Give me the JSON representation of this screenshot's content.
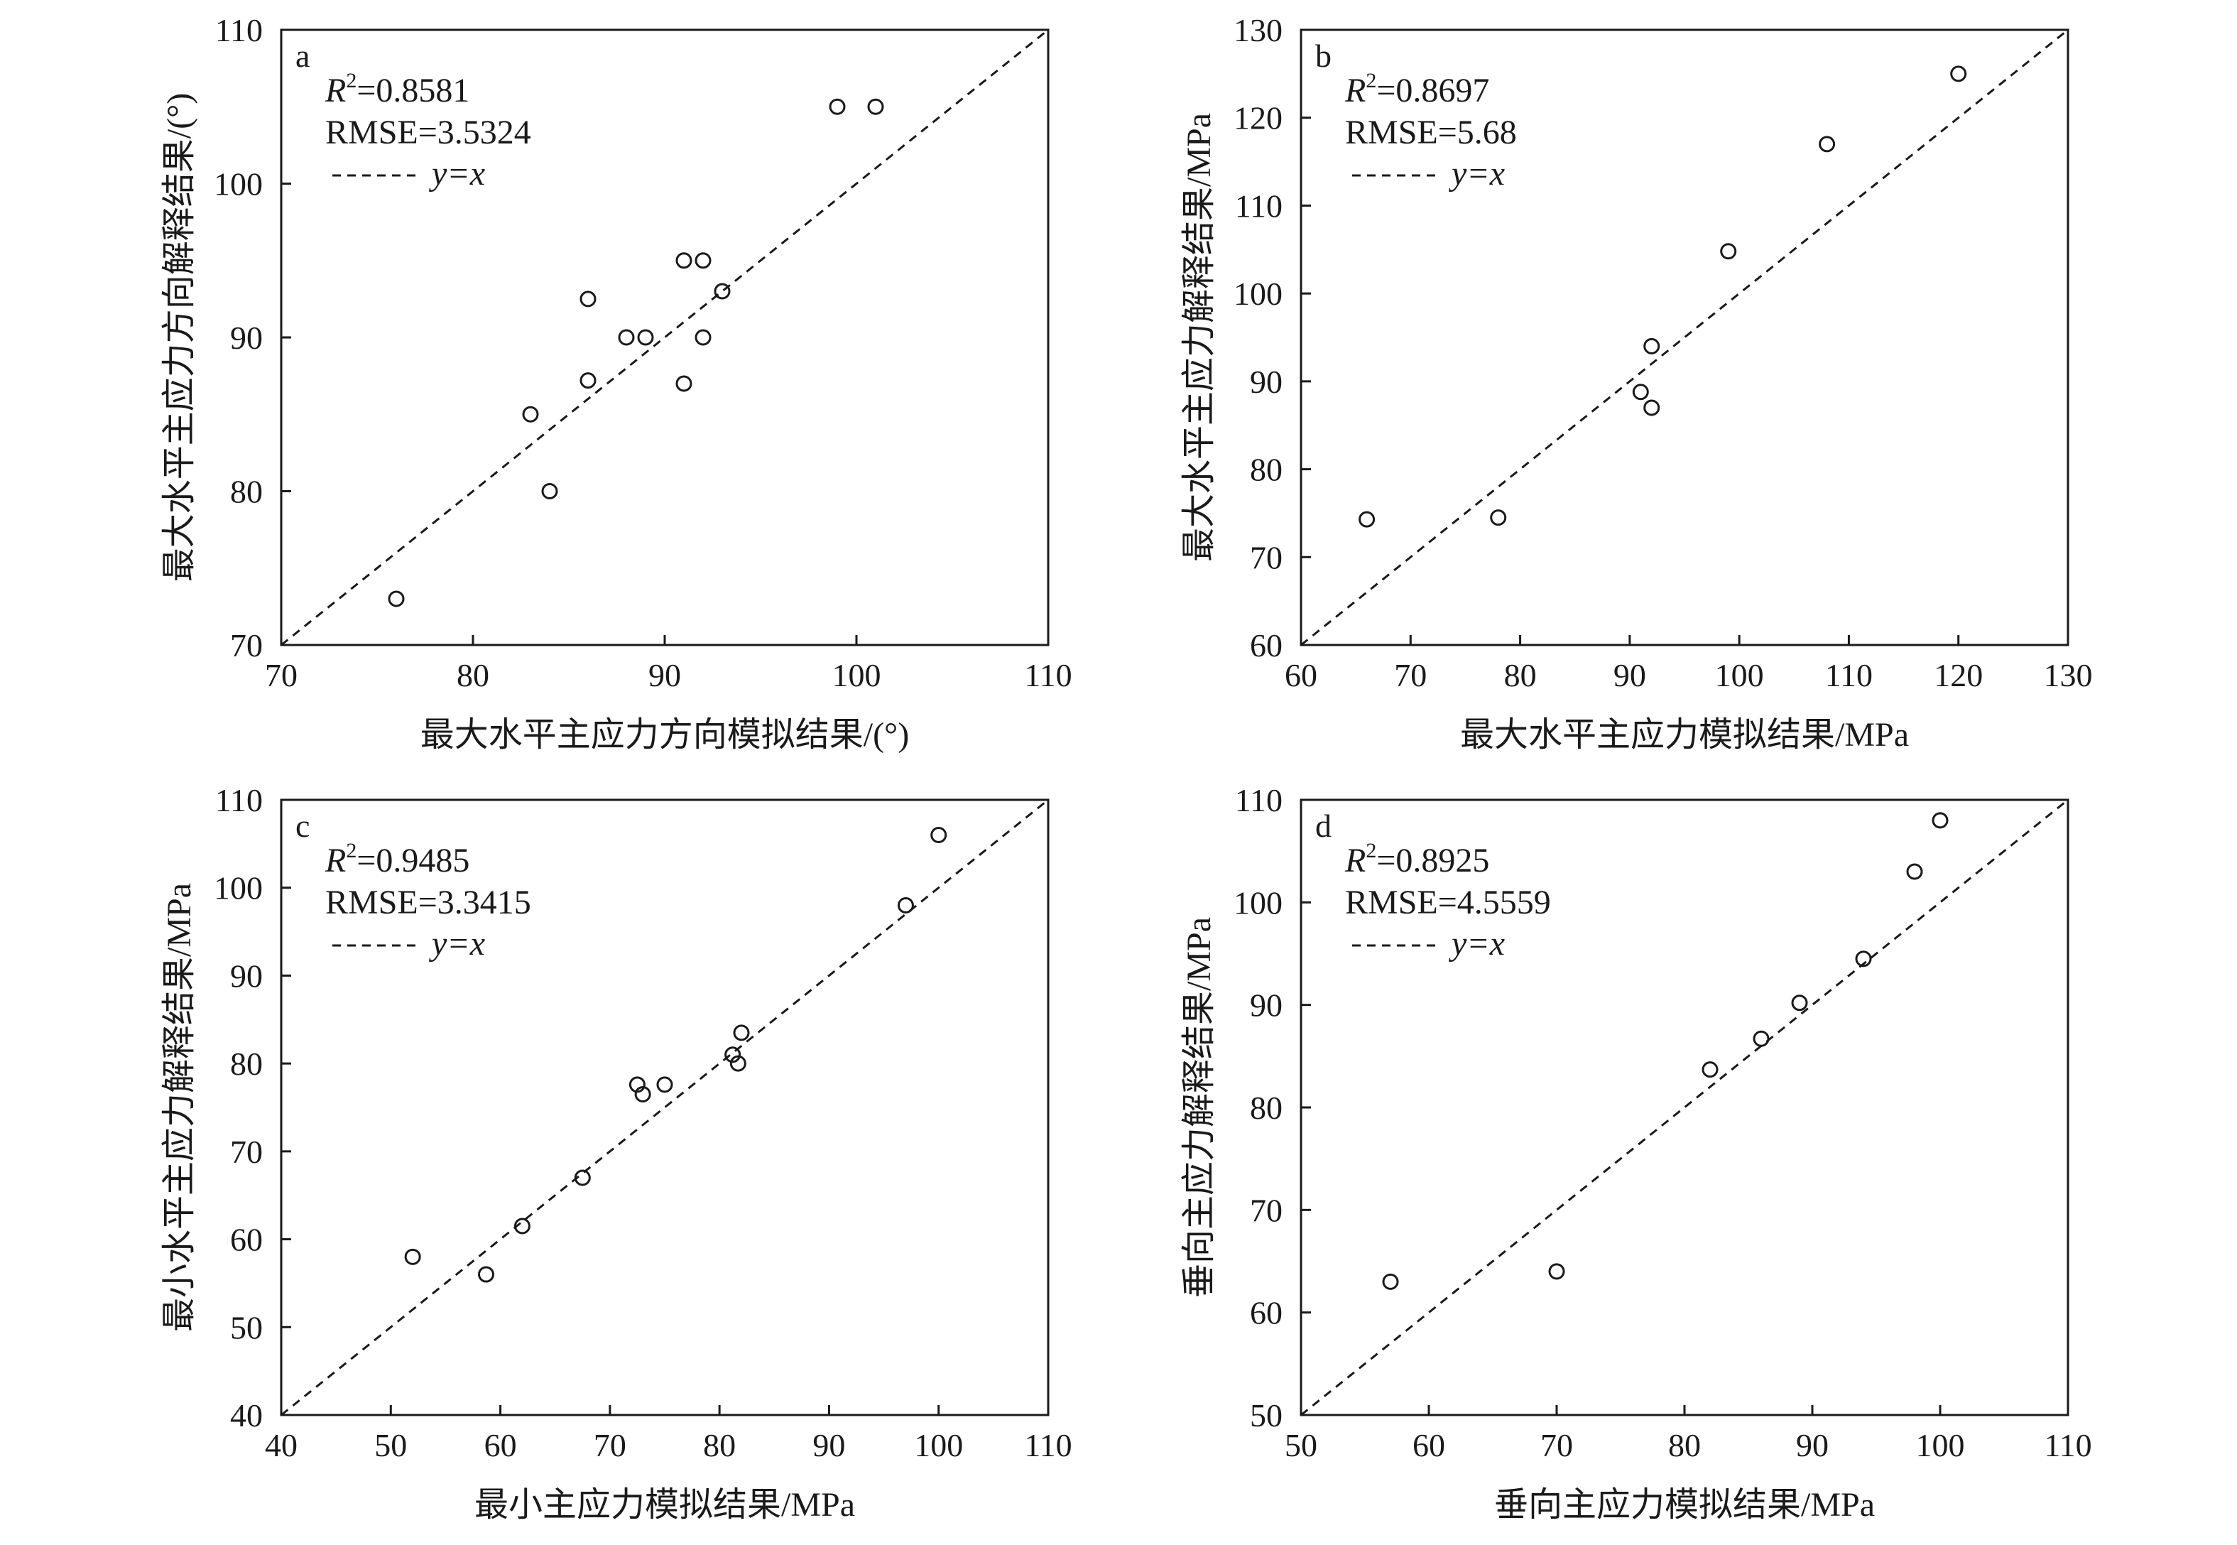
{
  "chart_data": [
    {
      "type": "scatter",
      "panel": "a",
      "stat_labels": {
        "r2": "R²=0.8581",
        "rmse": "RMSE=3.5324",
        "legend": "y=x"
      },
      "xlabel": "最大水平主应力方向模拟结果/(°)",
      "ylabel": "最大水平主应力方向解释结果/(°)",
      "xlim": [
        70,
        110
      ],
      "ylim": [
        70,
        110
      ],
      "xticks": [
        70,
        80,
        90,
        100,
        110
      ],
      "yticks": [
        70,
        80,
        90,
        100,
        110
      ],
      "reference_line": "y=x",
      "legend_position": "top-left",
      "x": [
        76,
        83,
        84,
        86,
        86,
        88,
        89,
        91,
        91,
        92,
        92,
        93,
        99,
        101
      ],
      "y": [
        73,
        85,
        80,
        92.5,
        87.2,
        90,
        90,
        95,
        87,
        95,
        90,
        93,
        105,
        105
      ]
    },
    {
      "type": "scatter",
      "panel": "b",
      "stat_labels": {
        "r2": "R²=0.8697",
        "rmse": "RMSE=5.68",
        "legend": "y=x"
      },
      "xlabel": "最大水平主应力模拟结果/MPa",
      "ylabel": "最大水平主应力解释结果/MPa",
      "xlim": [
        60,
        130
      ],
      "ylim": [
        60,
        130
      ],
      "xticks": [
        60,
        70,
        80,
        90,
        100,
        110,
        120,
        130
      ],
      "yticks": [
        60,
        70,
        80,
        90,
        100,
        110,
        120,
        130
      ],
      "reference_line": "y=x",
      "legend_position": "top-left",
      "x": [
        66,
        78,
        91,
        92,
        92,
        99,
        108,
        120
      ],
      "y": [
        74.3,
        74.5,
        88.8,
        94,
        87,
        104.8,
        117,
        125
      ]
    },
    {
      "type": "scatter",
      "panel": "c",
      "stat_labels": {
        "r2": "R²=0.9485",
        "rmse": "RMSE=3.3415",
        "legend": "y=x"
      },
      "xlabel": "最小主应力模拟结果/MPa",
      "ylabel": "最小水平主应力解释结果/MPa",
      "xlim": [
        40,
        110
      ],
      "ylim": [
        40,
        110
      ],
      "xticks": [
        40,
        50,
        60,
        70,
        80,
        90,
        100,
        110
      ],
      "yticks": [
        40,
        50,
        60,
        70,
        80,
        90,
        100,
        110
      ],
      "reference_line": "y=x",
      "legend_position": "top-left",
      "x": [
        52,
        58.7,
        62,
        67.5,
        72.5,
        73,
        75,
        81.2,
        81.7,
        82,
        97,
        100
      ],
      "y": [
        58,
        56,
        61.5,
        67,
        77.6,
        76.5,
        77.6,
        81,
        80,
        83.5,
        98,
        106
      ]
    },
    {
      "type": "scatter",
      "panel": "d",
      "stat_labels": {
        "r2": "R²=0.8925",
        "rmse": "RMSE=4.5559",
        "legend": "y=x"
      },
      "xlabel": "垂向主应力模拟结果/MPa",
      "ylabel": "垂向主应力解释结果/MPa",
      "xlim": [
        50,
        110
      ],
      "ylim": [
        50,
        110
      ],
      "xticks": [
        50,
        60,
        70,
        80,
        90,
        100,
        110
      ],
      "yticks": [
        50,
        60,
        70,
        80,
        90,
        100,
        110
      ],
      "reference_line": "y=x",
      "legend_position": "top-left",
      "x": [
        57,
        70,
        82,
        86,
        89,
        94,
        98,
        100
      ],
      "y": [
        63,
        64,
        83.7,
        86.7,
        90.2,
        94.5,
        103,
        108
      ]
    }
  ]
}
